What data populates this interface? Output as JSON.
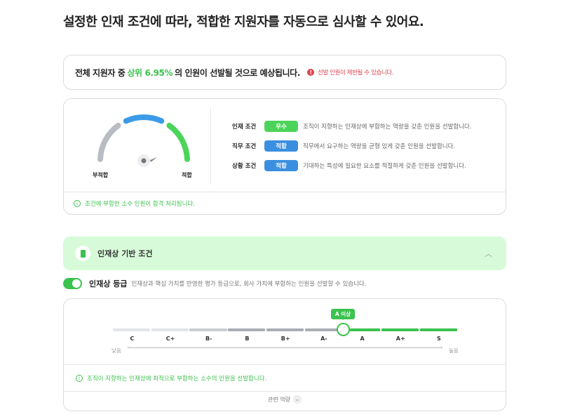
{
  "title": "설정한 인재 조건에 따라, 적합한 지원자를 자동으로 심사할 수 있어요.",
  "summary": {
    "prefix": "전체 지원자 중",
    "highlight": "상위 6.95%",
    "suffix": "의 인원이 선발될 것으로 예상됩니다.",
    "warning": "선발 인원이 제한될 수 있습니다.",
    "warning_icon": "exclamation-circle-icon"
  },
  "gauge": {
    "low_label": "부적합",
    "high_label": "적합",
    "colors": {
      "low": "#b9bcc2",
      "mid": "#3b9be8",
      "high": "#4cd45a"
    }
  },
  "conditions": [
    {
      "label": "인재 조건",
      "badge": "우수",
      "color": "#4cd45a",
      "desc": "조직이 지향하는 인재상에 부합하는 역량을 갖춘 인원을 선발합니다."
    },
    {
      "label": "직무 조건",
      "badge": "적합",
      "color": "#3b8fe0",
      "desc": "직무에서 요구하는 역량을 균형 있게 갖춘 인원을 선발합니다."
    },
    {
      "label": "상황 조건",
      "badge": "적합",
      "color": "#3b8fe0",
      "desc": "기대하는 특성에 필요한 요소를 적절하게 갖춘 인원을 선발합니다."
    }
  ],
  "eval_note": "조건에 부합한 소수 인원이 합격 처리됩니다.",
  "section": {
    "label": "인재상 기반 조건",
    "expanded": true
  },
  "grade": {
    "toggle_on": true,
    "label": "인재상 등급",
    "desc": "인재상과 핵심 가치를 반영한 평가 등급으로, 회사 가치에 부합하는 인원을 선발할 수 있습니다.",
    "levels": [
      "C",
      "C+",
      "B-",
      "B",
      "B+",
      "A-",
      "A",
      "A+",
      "S"
    ],
    "selected": "A",
    "tooltip": "A 이상",
    "axis_low": "낮음",
    "axis_high": "높음",
    "note": "조직이 지향하는 인재상에 최적으로 부합하는 소수의 인원을 선발합니다.",
    "related": "관련 역량"
  },
  "accent": "#3cc24e"
}
